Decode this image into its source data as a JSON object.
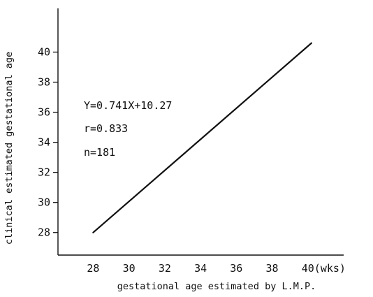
{
  "chart_data": {
    "type": "line",
    "title": "",
    "xlabel": "gestational age estimated by L.M.P.",
    "ylabel": "clinical estimated gestational age",
    "x_unit": "(wks)",
    "xlim": [
      26.5,
      42
    ],
    "ylim": [
      26.5,
      43
    ],
    "x_ticks": [
      28,
      30,
      32,
      34,
      36,
      38,
      40
    ],
    "y_ticks": [
      28,
      30,
      32,
      34,
      36,
      38,
      40
    ],
    "x_tick_labels": [
      "28",
      "30",
      "32",
      "34",
      "36",
      "38",
      "40(wks)"
    ],
    "y_tick_labels": [
      "28",
      "30",
      "32",
      "34",
      "36",
      "38",
      "40"
    ],
    "grid": false,
    "series": [
      {
        "x": [
          28,
          40.2
        ],
        "y": [
          28,
          40.6
        ]
      }
    ],
    "annotations": [
      "Y=0.741X+10.27",
      "r=0.833",
      "n=181"
    ]
  },
  "colors": {
    "ink": "#111111",
    "background": "#ffffff"
  }
}
